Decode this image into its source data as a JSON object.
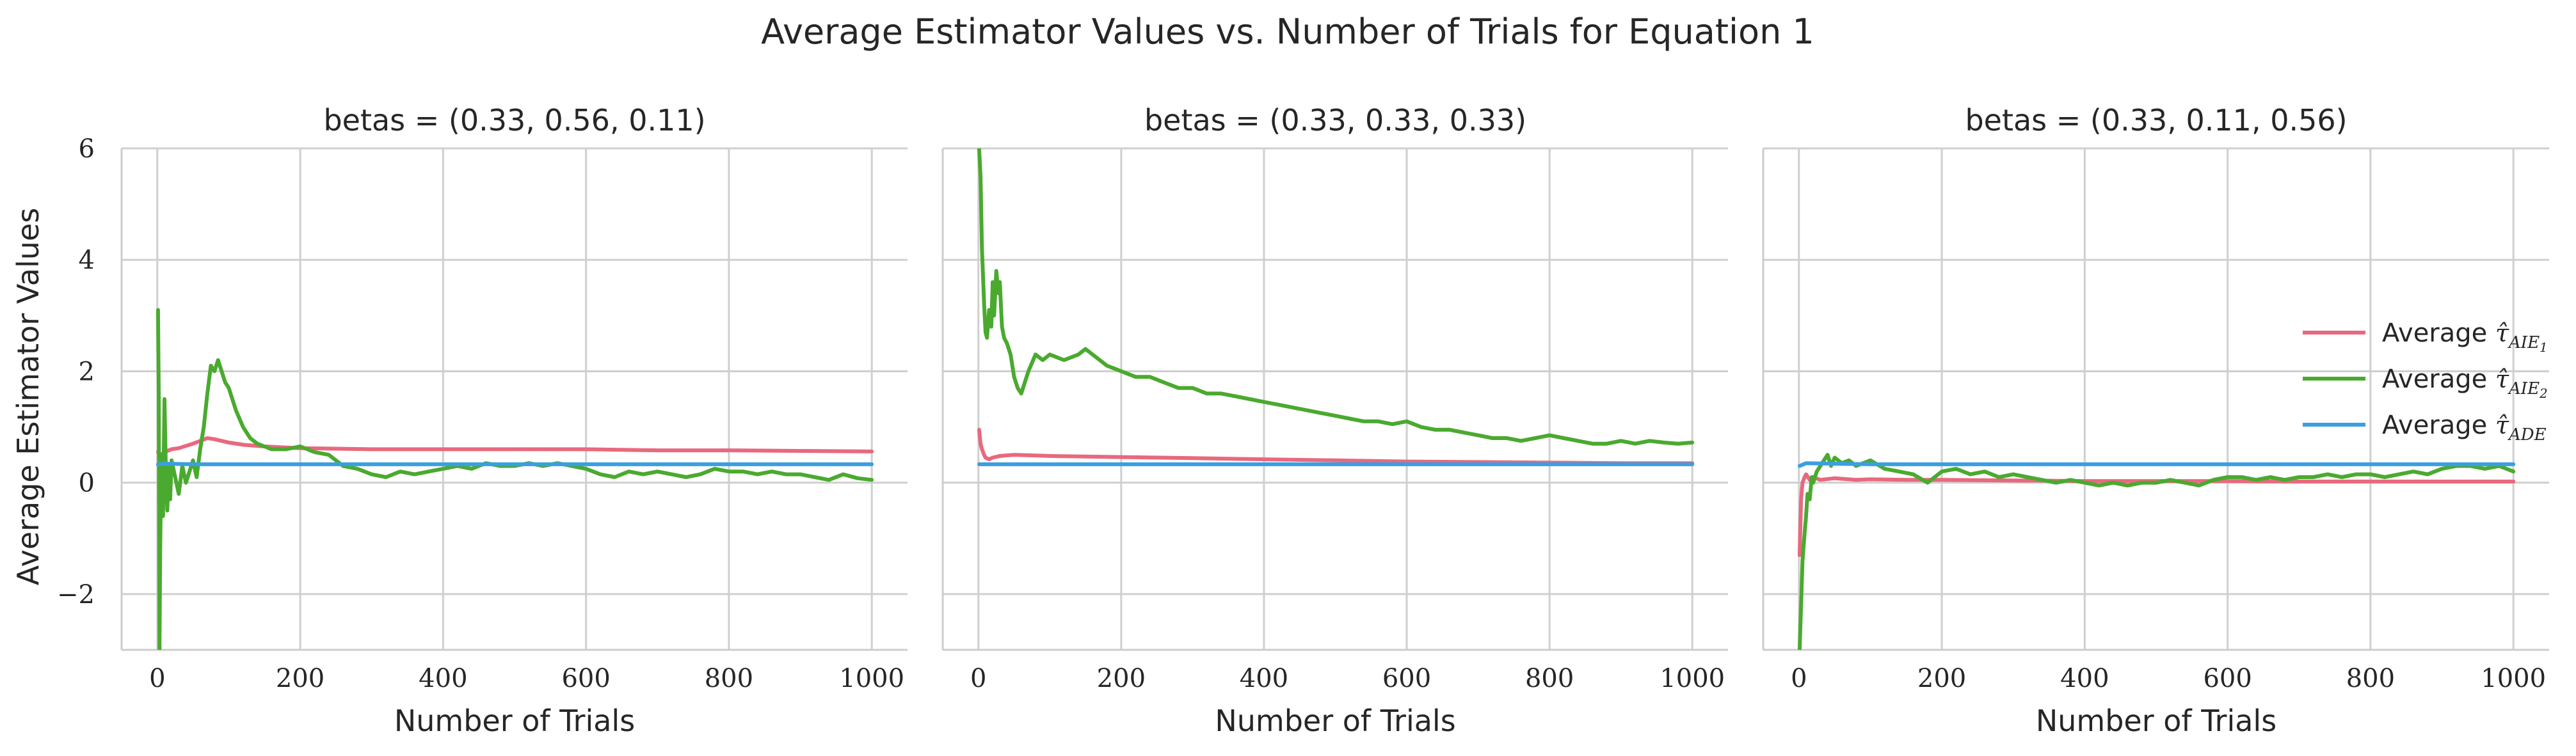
{
  "chart_data": {
    "type": "line",
    "title": "Average Estimator Values vs. Number of Trials for Equation 1",
    "xlabel": "Number of Trials",
    "ylabel": "Average Estimator Values",
    "xlim": [
      -50,
      1050
    ],
    "ylim": [
      -3,
      6
    ],
    "xticks": [
      0,
      200,
      400,
      600,
      800,
      1000
    ],
    "yticks": [
      -2,
      0,
      2,
      4,
      6
    ],
    "ytick_labels": [
      "−2",
      "0",
      "2",
      "4",
      "6"
    ],
    "grid": true,
    "sharey": true,
    "legend_position": "right",
    "legend": [
      {
        "prefix": "Average ",
        "symbol": "τ̂",
        "sub": "AIE",
        "subsub": "1",
        "color": "#e8697f"
      },
      {
        "prefix": "Average ",
        "symbol": "τ̂",
        "sub": "AIE",
        "subsub": "2",
        "color": "#4aaa2f"
      },
      {
        "prefix": "Average ",
        "symbol": "τ̂",
        "sub": "ADE",
        "subsub": "",
        "color": "#3a9fe0"
      }
    ],
    "panels": [
      {
        "title": "betas = (0.33, 0.56, 0.11)",
        "series": [
          {
            "color": "#e8697f",
            "x": [
              1,
              5,
              10,
              20,
              30,
              50,
              70,
              80,
              100,
              120,
              150,
              200,
              300,
              400,
              500,
              600,
              700,
              800,
              900,
              1000
            ],
            "y": [
              0.55,
              0.5,
              0.55,
              0.6,
              0.62,
              0.7,
              0.8,
              0.78,
              0.72,
              0.68,
              0.65,
              0.62,
              0.6,
              0.6,
              0.6,
              0.6,
              0.58,
              0.58,
              0.57,
              0.56
            ]
          },
          {
            "color": "#4aaa2f",
            "x": [
              1,
              2,
              3,
              4,
              5,
              6,
              8,
              10,
              12,
              14,
              16,
              18,
              20,
              25,
              30,
              35,
              40,
              45,
              50,
              55,
              60,
              65,
              70,
              75,
              80,
              85,
              90,
              95,
              100,
              110,
              120,
              130,
              140,
              150,
              160,
              180,
              200,
              220,
              240,
              260,
              280,
              300,
              320,
              340,
              360,
              380,
              400,
              420,
              440,
              460,
              480,
              500,
              520,
              540,
              560,
              580,
              600,
              620,
              640,
              660,
              680,
              700,
              720,
              740,
              760,
              780,
              800,
              820,
              840,
              860,
              880,
              900,
              920,
              940,
              960,
              980,
              1000
            ],
            "y": [
              3.1,
              1.5,
              -3.0,
              -1.2,
              -0.2,
              0.5,
              -0.6,
              1.5,
              0.2,
              -0.5,
              0.3,
              -0.3,
              0.4,
              0.1,
              -0.2,
              0.3,
              0.0,
              0.2,
              0.4,
              0.1,
              0.6,
              1.0,
              1.6,
              2.1,
              2.0,
              2.2,
              2.0,
              1.8,
              1.7,
              1.3,
              1.0,
              0.8,
              0.7,
              0.65,
              0.6,
              0.6,
              0.65,
              0.55,
              0.5,
              0.3,
              0.25,
              0.15,
              0.1,
              0.2,
              0.15,
              0.2,
              0.25,
              0.3,
              0.25,
              0.35,
              0.3,
              0.3,
              0.35,
              0.3,
              0.35,
              0.3,
              0.25,
              0.15,
              0.1,
              0.2,
              0.15,
              0.2,
              0.15,
              0.1,
              0.15,
              0.25,
              0.2,
              0.2,
              0.15,
              0.2,
              0.15,
              0.15,
              0.1,
              0.05,
              0.15,
              0.08,
              0.05
            ]
          },
          {
            "color": "#3a9fe0",
            "x": [
              1,
              10,
              50,
              100,
              200,
              400,
              600,
              800,
              1000
            ],
            "y": [
              0.33,
              0.34,
              0.33,
              0.33,
              0.33,
              0.33,
              0.33,
              0.33,
              0.33
            ]
          }
        ]
      },
      {
        "title": "betas = (0.33, 0.33, 0.33)",
        "series": [
          {
            "color": "#e8697f",
            "x": [
              1,
              3,
              5,
              8,
              10,
              15,
              20,
              30,
              50,
              100,
              200,
              300,
              400,
              500,
              600,
              700,
              800,
              900,
              1000
            ],
            "y": [
              0.95,
              0.7,
              0.6,
              0.5,
              0.45,
              0.42,
              0.45,
              0.48,
              0.5,
              0.48,
              0.46,
              0.44,
              0.42,
              0.4,
              0.38,
              0.37,
              0.36,
              0.35,
              0.35
            ]
          },
          {
            "color": "#4aaa2f",
            "x": [
              1,
              3,
              5,
              8,
              10,
              12,
              15,
              18,
              20,
              22,
              25,
              28,
              30,
              33,
              36,
              40,
              45,
              50,
              55,
              60,
              70,
              80,
              90,
              100,
              120,
              140,
              150,
              160,
              170,
              180,
              200,
              220,
              240,
              260,
              280,
              300,
              320,
              340,
              360,
              380,
              400,
              420,
              440,
              460,
              480,
              500,
              520,
              540,
              560,
              580,
              600,
              620,
              640,
              660,
              680,
              700,
              720,
              740,
              760,
              780,
              800,
              820,
              840,
              860,
              880,
              900,
              920,
              940,
              960,
              980,
              1000
            ],
            "y": [
              6.0,
              5.5,
              4.2,
              3.2,
              2.7,
              2.6,
              3.1,
              2.8,
              3.6,
              3.0,
              3.8,
              3.4,
              3.6,
              2.8,
              2.6,
              2.5,
              2.3,
              1.9,
              1.7,
              1.6,
              2.0,
              2.3,
              2.2,
              2.3,
              2.2,
              2.3,
              2.4,
              2.3,
              2.2,
              2.1,
              2.0,
              1.9,
              1.9,
              1.8,
              1.7,
              1.7,
              1.6,
              1.6,
              1.55,
              1.5,
              1.45,
              1.4,
              1.35,
              1.3,
              1.25,
              1.2,
              1.15,
              1.1,
              1.1,
              1.05,
              1.1,
              1.0,
              0.95,
              0.95,
              0.9,
              0.85,
              0.8,
              0.8,
              0.75,
              0.8,
              0.85,
              0.8,
              0.75,
              0.7,
              0.7,
              0.75,
              0.7,
              0.75,
              0.72,
              0.7,
              0.72
            ]
          },
          {
            "color": "#3a9fe0",
            "x": [
              1,
              10,
              50,
              100,
              200,
              400,
              600,
              800,
              1000
            ],
            "y": [
              0.33,
              0.33,
              0.33,
              0.33,
              0.33,
              0.33,
              0.33,
              0.33,
              0.33
            ]
          }
        ]
      },
      {
        "title": "betas = (0.33, 0.11, 0.56)",
        "series": [
          {
            "color": "#e8697f",
            "x": [
              1,
              3,
              5,
              8,
              10,
              15,
              20,
              30,
              50,
              80,
              100,
              150,
              200,
              300,
              400,
              500,
              600,
              700,
              800,
              900,
              1000
            ],
            "y": [
              -1.3,
              -0.3,
              0.0,
              0.1,
              0.15,
              0.05,
              0.1,
              0.05,
              0.08,
              0.05,
              0.06,
              0.05,
              0.05,
              0.04,
              0.03,
              0.03,
              0.03,
              0.02,
              0.02,
              0.02,
              0.02
            ]
          },
          {
            "color": "#4aaa2f",
            "x": [
              1,
              3,
              5,
              8,
              10,
              12,
              15,
              18,
              20,
              25,
              30,
              35,
              40,
              45,
              50,
              55,
              60,
              70,
              80,
              90,
              100,
              120,
              140,
              160,
              180,
              200,
              220,
              240,
              260,
              280,
              300,
              320,
              340,
              360,
              380,
              400,
              420,
              440,
              460,
              480,
              500,
              520,
              540,
              560,
              580,
              600,
              620,
              640,
              660,
              680,
              700,
              720,
              740,
              760,
              780,
              800,
              820,
              840,
              860,
              880,
              900,
              920,
              940,
              960,
              980,
              1000
            ],
            "y": [
              -3.0,
              -2.2,
              -1.4,
              -0.9,
              -0.6,
              -0.2,
              -0.3,
              0.1,
              0.0,
              0.2,
              0.3,
              0.4,
              0.5,
              0.3,
              0.45,
              0.4,
              0.35,
              0.4,
              0.3,
              0.35,
              0.4,
              0.25,
              0.2,
              0.15,
              0.0,
              0.2,
              0.25,
              0.15,
              0.2,
              0.1,
              0.15,
              0.1,
              0.05,
              0.0,
              0.05,
              0.0,
              -0.05,
              0.0,
              -0.05,
              0.0,
              0.0,
              0.05,
              0.0,
              -0.05,
              0.05,
              0.1,
              0.1,
              0.05,
              0.1,
              0.05,
              0.1,
              0.1,
              0.15,
              0.1,
              0.15,
              0.15,
              0.1,
              0.15,
              0.2,
              0.15,
              0.25,
              0.3,
              0.3,
              0.25,
              0.3,
              0.2
            ]
          },
          {
            "color": "#3a9fe0",
            "x": [
              1,
              10,
              50,
              100,
              200,
              400,
              600,
              800,
              1000
            ],
            "y": [
              0.3,
              0.35,
              0.34,
              0.33,
              0.33,
              0.33,
              0.33,
              0.33,
              0.33
            ]
          }
        ]
      }
    ]
  }
}
